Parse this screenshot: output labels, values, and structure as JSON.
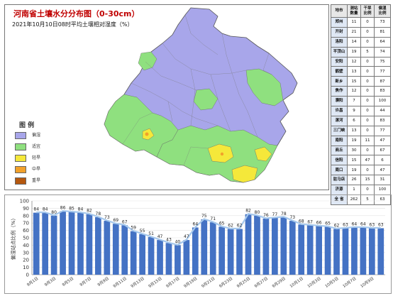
{
  "map": {
    "title": "河南省土壤水分分布图（0-30cm）",
    "subtitle": "2021年10月10日08时平均土壤相对湿度（%）",
    "legend_title": "图 例",
    "legend": [
      {
        "label": "偏湿",
        "color": "#a8a6ea"
      },
      {
        "label": "适宜",
        "color": "#8fe07f"
      },
      {
        "label": "轻旱",
        "color": "#f5e83a"
      },
      {
        "label": "中旱",
        "color": "#f2a12a"
      },
      {
        "label": "重旱",
        "color": "#b5580f"
      }
    ],
    "zone_colors": {
      "wet": "#a8a6ea",
      "suitable": "#8fe07f",
      "light": "#f5e83a",
      "medium": "#f2a12a"
    }
  },
  "table": {
    "headers": [
      "地市",
      "测站\n数量",
      "干旱\n比例",
      "偏湿\n比例"
    ],
    "rows": [
      [
        "郑州",
        "11",
        "0",
        "73"
      ],
      [
        "开封",
        "21",
        "0",
        "81"
      ],
      [
        "洛阳",
        "14",
        "0",
        "64"
      ],
      [
        "平顶山",
        "19",
        "5",
        "74"
      ],
      [
        "安阳",
        "12",
        "0",
        "75"
      ],
      [
        "鹤壁",
        "13",
        "0",
        "77"
      ],
      [
        "新乡",
        "15",
        "0",
        "87"
      ],
      [
        "焦作",
        "12",
        "0",
        "83"
      ],
      [
        "濮阳",
        "7",
        "0",
        "100"
      ],
      [
        "许昌",
        "9",
        "0",
        "44"
      ],
      [
        "漯河",
        "6",
        "0",
        "83"
      ],
      [
        "三门峡",
        "13",
        "0",
        "77"
      ],
      [
        "南阳",
        "19",
        "11",
        "47"
      ],
      [
        "商丘",
        "30",
        "0",
        "67"
      ],
      [
        "信阳",
        "15",
        "47",
        "6"
      ],
      [
        "周口",
        "19",
        "0",
        "47"
      ],
      [
        "驻马店",
        "26",
        "15",
        "31"
      ],
      [
        "济源",
        "1",
        "0",
        "100"
      ],
      [
        "全 省",
        "262",
        "5",
        "63"
      ]
    ]
  },
  "chart_data": {
    "type": "bar",
    "categories": [
      "9月1日",
      "9月2日",
      "9月3日",
      "9月4日",
      "9月5日",
      "9月6日",
      "9月7日",
      "9月8日",
      "9月9日",
      "9月10日",
      "9月11日",
      "9月12日",
      "9月13日",
      "9月14日",
      "9月15日",
      "9月16日",
      "9月17日",
      "9月18日",
      "9月19日",
      "9月20日",
      "9月21日",
      "9月22日",
      "9月23日",
      "9月24日",
      "9月25日",
      "9月26日",
      "9月27日",
      "9月28日",
      "9月29日",
      "9月30日",
      "10月1日",
      "10月2日",
      "10月3日",
      "10月4日",
      "10月5日",
      "10月6日",
      "10月7日",
      "10月8日",
      "10月9日",
      "10月10日"
    ],
    "tick_labels": [
      "9月1日",
      "9月3日",
      "9月5日",
      "9月7日",
      "9月9日",
      "9月11日",
      "9月13日",
      "9月15日",
      "9月17日",
      "9月19日",
      "9月21日",
      "9月23日",
      "9月25日",
      "9月27日",
      "9月29日",
      "10月1日",
      "10月3日",
      "10月5日",
      "10月7日",
      "10月9日"
    ],
    "values": [
      84,
      84,
      80,
      86,
      85,
      84,
      82,
      78,
      73,
      69,
      67,
      59,
      55,
      51,
      47,
      43,
      40,
      47,
      64,
      75,
      71,
      65,
      62,
      62,
      82,
      80,
      76,
      77,
      78,
      73,
      68,
      67,
      66,
      65,
      62,
      63,
      64,
      64,
      63,
      63
    ],
    "ylabel": "偏湿站点比例（%）",
    "ylim": [
      0,
      100
    ],
    "yticks": [
      0,
      10,
      20,
      30,
      40,
      50,
      60,
      70,
      80,
      90,
      100
    ],
    "bar_color": "#4472c4",
    "line_color": "#a6c8ec",
    "grid": true
  }
}
